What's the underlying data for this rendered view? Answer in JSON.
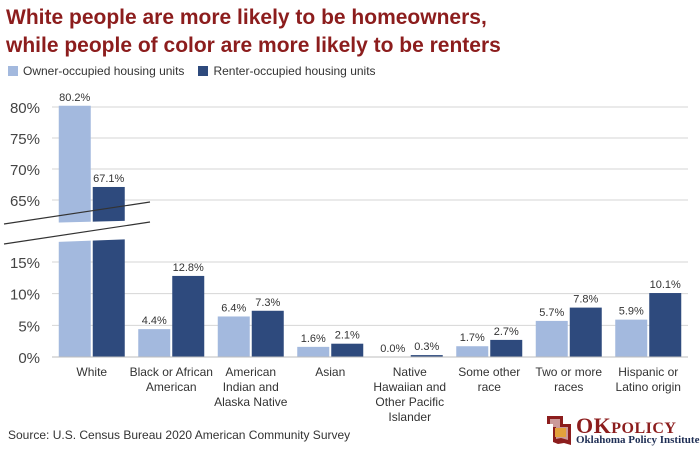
{
  "title_lines": [
    "White people are more likely to be homeowners,",
    "while people of color are more likely to be renters"
  ],
  "source": "Source: U.S. Census Bureau 2020 American Community Survey",
  "logo": {
    "name": "OKPOLICY",
    "subtitle": "Oklahoma Policy Institute",
    "color": "#8c1d1d"
  },
  "chart_data": {
    "type": "bar",
    "title": "White people are more likely to be homeowners, while people of color are more likely to be renters",
    "xlabel": "",
    "ylabel": "",
    "categories": [
      "White",
      "Black or African American",
      "American Indian and Alaska Native",
      "Asian",
      "Native Hawaiian and Other Pacific Islander",
      "Some other race",
      "Two or more races",
      "Hispanic or Latino origin"
    ],
    "category_lines": [
      [
        "White"
      ],
      [
        "Black or African",
        "American"
      ],
      [
        "American",
        "Indian and",
        "Alaska Native"
      ],
      [
        "Asian"
      ],
      [
        "Native",
        "Hawaiian and",
        "Other Pacific",
        "Islander"
      ],
      [
        "Some other",
        "race"
      ],
      [
        "Two or more",
        "races"
      ],
      [
        "Hispanic or",
        "Latino origin"
      ]
    ],
    "series": [
      {
        "name": "Owner-occupied housing units",
        "color": "#a3b9de",
        "values": [
          80.2,
          4.4,
          6.4,
          1.6,
          0.0,
          1.7,
          5.7,
          5.9
        ],
        "labels": [
          "80.2%",
          "4.4%",
          "6.4%",
          "1.6%",
          "0.0%",
          "1.7%",
          "5.7%",
          "5.9%"
        ]
      },
      {
        "name": "Renter-occupied housing units",
        "color": "#2e4a7d",
        "values": [
          67.1,
          12.8,
          7.3,
          2.1,
          0.3,
          2.7,
          7.8,
          10.1
        ],
        "labels": [
          "67.1%",
          "12.8%",
          "7.3%",
          "2.1%",
          "0.3%",
          "2.7%",
          "7.8%",
          "10.1%"
        ]
      }
    ],
    "y_axis": {
      "scale": "broken",
      "lower_range": [
        0,
        15
      ],
      "upper_range": [
        65,
        80
      ],
      "ticks": [
        0,
        5,
        10,
        15,
        65,
        70,
        75,
        80
      ],
      "tick_labels": [
        "0%",
        "5%",
        "10%",
        "15%",
        "65%",
        "70%",
        "75%",
        "80%"
      ]
    },
    "grid": true,
    "legend_position": "top-left"
  }
}
